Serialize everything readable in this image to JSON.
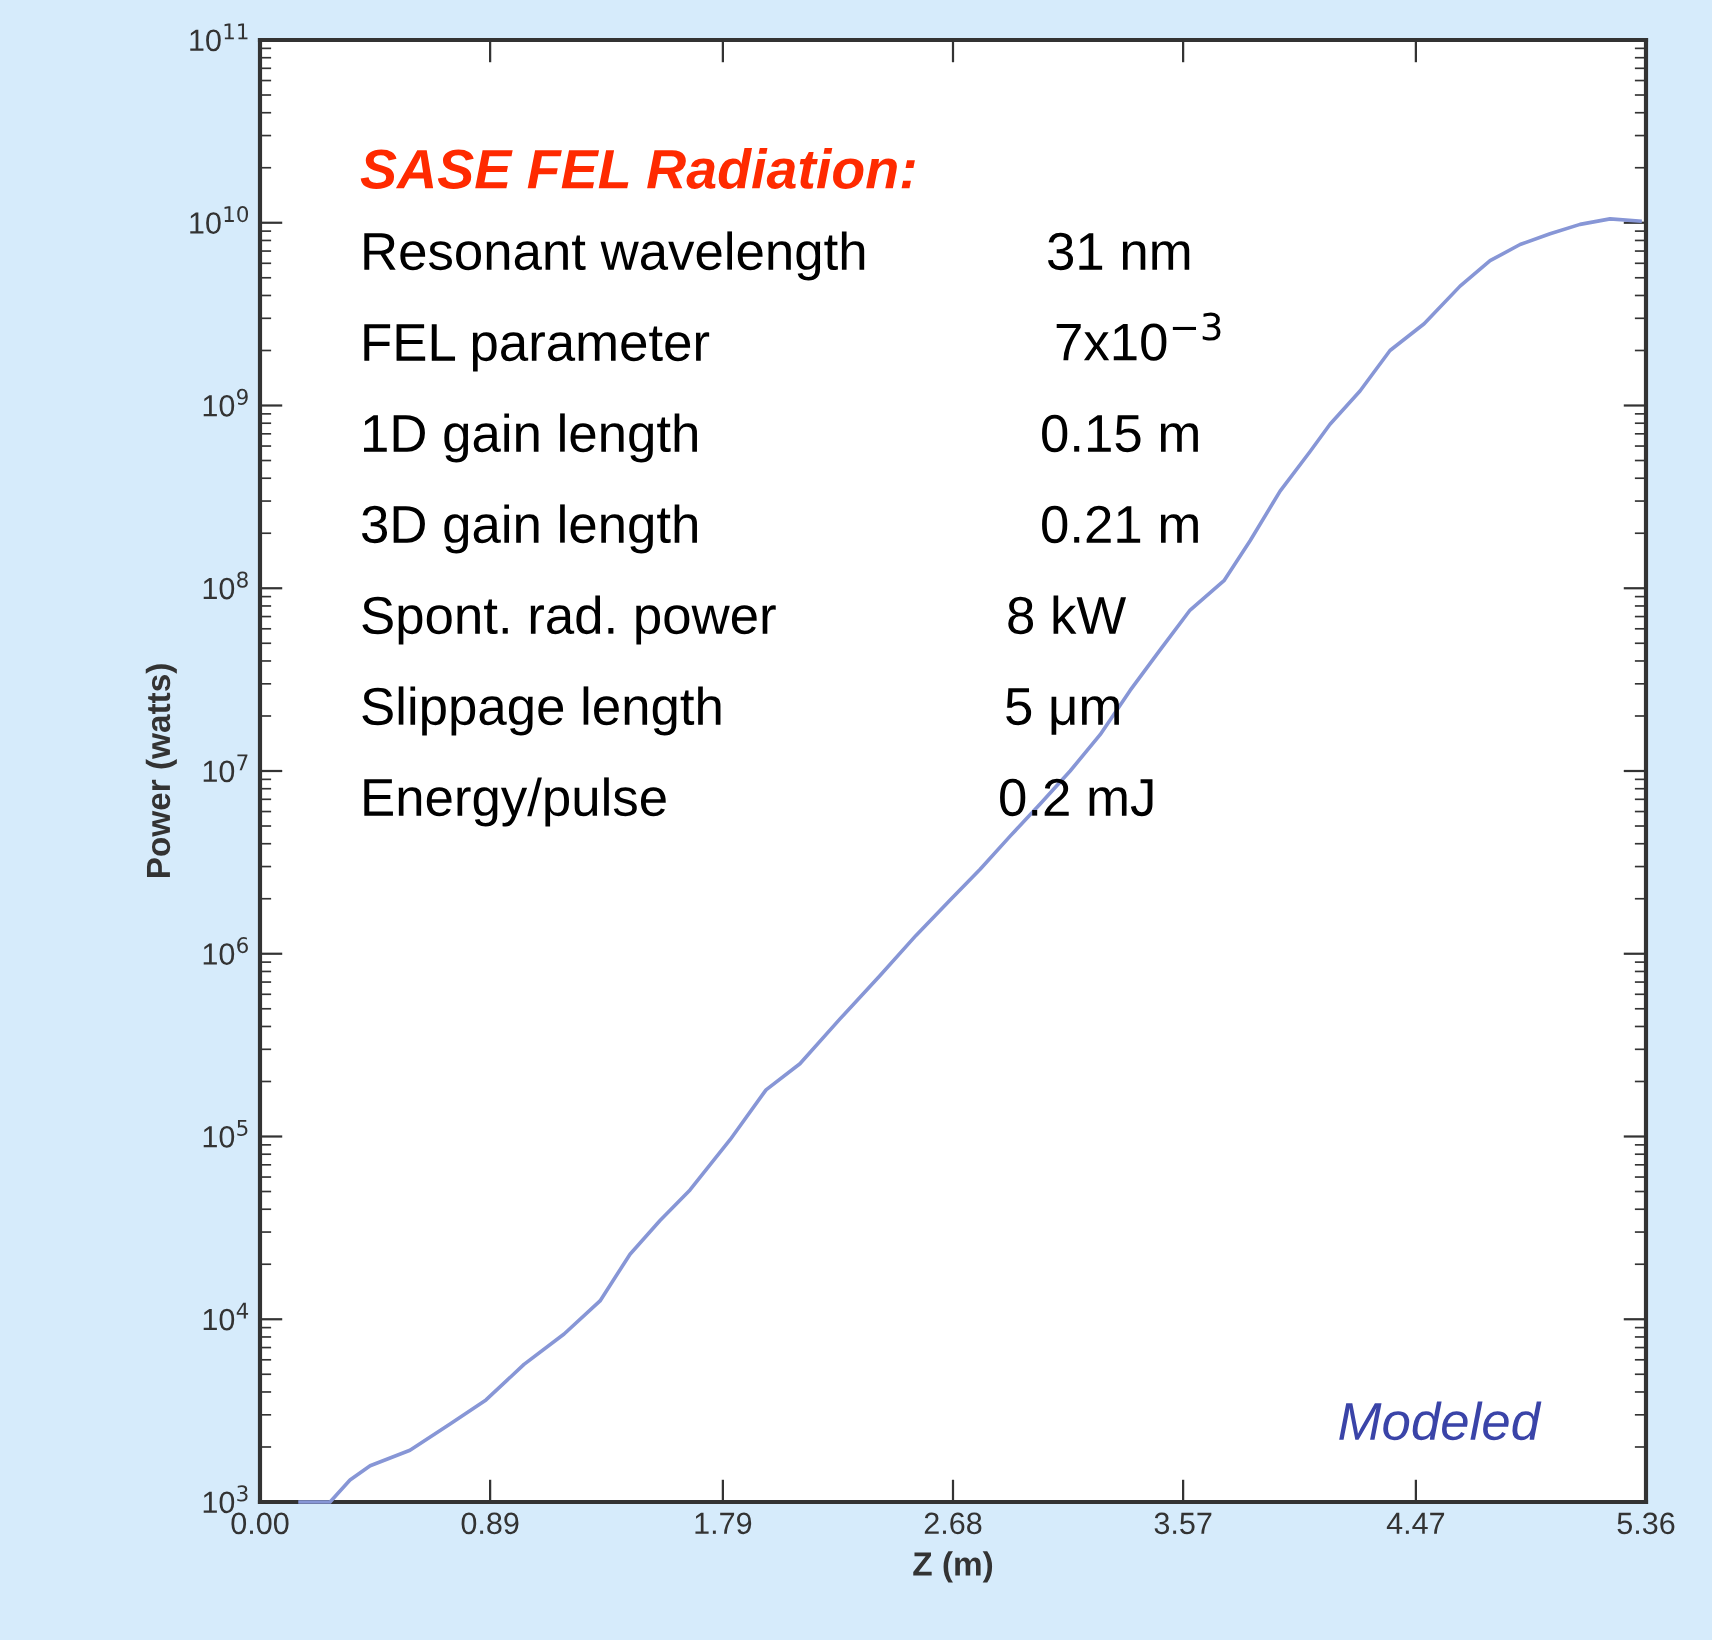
{
  "chart_data": {
    "type": "line",
    "xlabel": "Z (m)",
    "ylabel": "Power (watts)",
    "log": "y",
    "xlim": [
      0,
      5.36
    ],
    "xticks": [
      {
        "value": 0,
        "label": "0.00"
      },
      0.89,
      1.79,
      2.68,
      3.57,
      4.47,
      5.36
    ],
    "ylim": [
      1000,
      100000000000
    ],
    "yticks": [
      {
        "value": 1000,
        "label": "10$^{3}$"
      },
      {
        "value": 10000,
        "label": "10$^{4}$"
      },
      {
        "value": 100000,
        "label": "10$^{5}$"
      },
      {
        "value": 1000000,
        "label": "10$^{6}$"
      },
      {
        "value": 10000000,
        "label": "10$^{7}$"
      },
      {
        "value": 100000000,
        "label": "10$^{8}$"
      },
      {
        "value": 1000000000,
        "label": "10$^{9}$"
      },
      {
        "value": 10000000000,
        "label": "10$^{10}$"
      },
      {
        "value": 100000000000,
        "label": "10$^{11}$"
      }
    ],
    "grid": false,
    "legend": false,
    "marker": "none",
    "line_style": "solid",
    "series": [
      {
        "color": "#8796d6",
        "x": [
          0.155,
          0.271,
          0.348,
          0.426,
          0.58,
          0.735,
          0.874,
          1.021,
          1.176,
          1.315,
          1.431,
          1.547,
          1.663,
          1.818,
          1.957,
          2.088,
          2.243,
          2.398,
          2.537,
          2.669,
          2.785,
          2.901,
          3.017,
          3.133,
          3.249,
          3.365,
          3.481,
          3.597,
          3.728,
          3.829,
          3.945,
          4.061,
          4.138,
          4.254,
          4.37,
          4.502,
          4.641,
          4.757,
          4.873,
          4.989,
          5.105,
          5.221,
          5.337
        ],
        "values": [
          1000,
          1000,
          1320,
          1580,
          1920,
          2670,
          3620,
          5660,
          8300,
          12600,
          22700,
          34700,
          51000,
          96000,
          180000,
          250000,
          440000,
          760000,
          1260000,
          1970000,
          2900000,
          4400000,
          6600000,
          10000000,
          15800000,
          27600000,
          46000000,
          76000000,
          110000000,
          182000000,
          340000000,
          560000000,
          790000000,
          1200000000,
          2000000000,
          2800000000,
          4500000000,
          6200000000,
          7600000000,
          8700000000,
          9800000000,
          10500000000,
          10200000000
        ]
      }
    ],
    "annotations": [
      "SASE FEL Radiation:",
      "Resonant wavelength",
      "31 nm",
      "FEL parameter",
      "7x10$^{−3}$",
      "1D gain length",
      "0.15 m",
      "3D gain length",
      "0.21 m",
      "Spont. rad. power",
      "8 kW",
      "Slippage length",
      "5 μm",
      "Energy/pulse",
      "0.2 mJ",
      "Modeled"
    ]
  }
}
